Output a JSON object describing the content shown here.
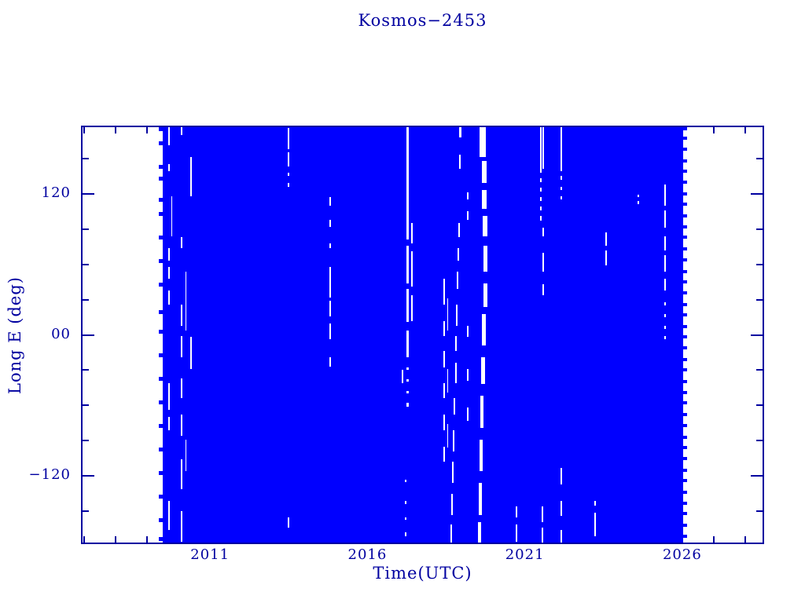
{
  "chart_data": {
    "type": "scatter",
    "title": "Kosmos−2453",
    "xlabel": "Time(UTC)",
    "ylabel": "Long E (deg)",
    "xlim": [
      2006.9,
      2028.6
    ],
    "ylim": [
      -178,
      178
    ],
    "x_major_ticks": [
      {
        "value": 2011,
        "label": "2011"
      },
      {
        "value": 2016,
        "label": "2016"
      },
      {
        "value": 2021,
        "label": "2021"
      },
      {
        "value": 2026,
        "label": "2026"
      }
    ],
    "x_minor_tick_years": [
      2007,
      2008,
      2009,
      2010,
      2012,
      2013,
      2014,
      2015,
      2017,
      2018,
      2019,
      2020,
      2022,
      2023,
      2024,
      2025,
      2027,
      2028
    ],
    "y_major_ticks": [
      {
        "value": 120,
        "label": "120"
      },
      {
        "value": 0,
        "label": "00"
      },
      {
        "value": -120,
        "label": "−120"
      }
    ],
    "y_minor_tick_degs": [
      -150,
      -90,
      -60,
      -30,
      30,
      60,
      90,
      150
    ],
    "colors": {
      "points": "#0000ff",
      "axis": "#0000a0",
      "background": "#ffffff"
    },
    "coverage": {
      "t_start": 2009.5,
      "t_end": 2026.02,
      "lon_min": -178,
      "lon_max": 178,
      "note": "dense continuous longitude coverage (solid fill of points) between t_start and t_end"
    },
    "gap_streaks": [
      {
        "t": 2009.7,
        "w": 2,
        "segments": [
          [
            178,
            161
          ],
          [
            145,
            139
          ],
          [
            74,
            63
          ],
          [
            58,
            48
          ],
          [
            38,
            26
          ],
          [
            -41,
            -64
          ],
          [
            -70,
            -81
          ],
          [
            -141,
            -166
          ]
        ]
      },
      {
        "t": 2009.78,
        "w": 1.5,
        "segments": [
          [
            118,
            84
          ]
        ]
      },
      {
        "t": 2010.1,
        "w": 2,
        "segments": [
          [
            178,
            170
          ],
          [
            83,
            74
          ],
          [
            26,
            8
          ],
          [
            -1,
            -19
          ],
          [
            -37,
            -54
          ],
          [
            -68,
            -86
          ],
          [
            -106,
            -131
          ],
          [
            -150,
            -176
          ]
        ]
      },
      {
        "t": 2010.23,
        "w": 1.5,
        "segments": [
          [
            54,
            4
          ],
          [
            -89,
            -116
          ]
        ]
      },
      {
        "t": 2010.4,
        "w": 1.5,
        "segments": [
          [
            151,
            118
          ],
          [
            -2,
            -29
          ]
        ]
      },
      {
        "t": 2013.5,
        "w": 2,
        "segments": [
          [
            176,
            158
          ],
          [
            155,
            143
          ],
          [
            138,
            135
          ],
          [
            129,
            126
          ],
          [
            -155,
            -164
          ]
        ]
      },
      {
        "t": 2014.82,
        "w": 2,
        "segments": [
          [
            117,
            110
          ],
          [
            98,
            92
          ],
          [
            78,
            74
          ],
          [
            58,
            32
          ],
          [
            29,
            16
          ],
          [
            10,
            -4
          ],
          [
            -19,
            -27
          ]
        ]
      },
      {
        "t": 2017.12,
        "w": 2,
        "segments": [
          [
            -30,
            -41
          ]
        ]
      },
      {
        "t": 2017.22,
        "w": 2,
        "segments": [
          [
            -123,
            -125
          ],
          [
            -141,
            -144
          ],
          [
            -155,
            -157
          ],
          [
            -168,
            -171
          ]
        ]
      },
      {
        "t": 2017.27,
        "w": 2.5,
        "segments": [
          [
            178,
            81
          ],
          [
            76,
            44
          ],
          [
            39,
            11
          ],
          [
            4,
            -19
          ],
          [
            -28,
            -30
          ],
          [
            -38,
            -40
          ],
          [
            -48,
            -50
          ],
          [
            -58,
            -61
          ]
        ]
      },
      {
        "t": 2017.42,
        "w": 2,
        "segments": [
          [
            95,
            78
          ],
          [
            71,
            41
          ],
          [
            34,
            12
          ]
        ]
      },
      {
        "t": 2018.44,
        "w": 1.5,
        "segments": [
          [
            48,
            26
          ],
          [
            12,
            -1
          ],
          [
            -14,
            -28
          ],
          [
            -41,
            -54
          ],
          [
            -68,
            -81
          ],
          [
            -95,
            -108
          ]
        ]
      },
      {
        "t": 2018.56,
        "w": 1,
        "segments": [
          [
            31,
            4
          ],
          [
            -29,
            -49
          ],
          [
            -76,
            -96
          ]
        ]
      },
      {
        "t": 2018.95,
        "w": 2.5,
        "segments": [
          [
            178,
            168
          ]
        ]
      },
      {
        "t": 2018.93,
        "w": 2.5,
        "segments": [
          [
            153,
            141
          ]
        ]
      },
      {
        "t": 2018.9,
        "w": 2,
        "segments": [
          [
            95,
            83
          ]
        ]
      },
      {
        "t": 2018.88,
        "w": 2,
        "segments": [
          [
            74,
            63
          ]
        ]
      },
      {
        "t": 2018.86,
        "w": 2,
        "segments": [
          [
            54,
            39
          ]
        ]
      },
      {
        "t": 2018.84,
        "w": 2,
        "segments": [
          [
            26,
            8
          ]
        ]
      },
      {
        "t": 2018.82,
        "w": 2,
        "segments": [
          [
            -1,
            -14
          ]
        ]
      },
      {
        "t": 2018.8,
        "w": 2,
        "segments": [
          [
            -24,
            -41
          ]
        ]
      },
      {
        "t": 2018.77,
        "w": 2,
        "segments": [
          [
            -54,
            -68
          ]
        ]
      },
      {
        "t": 2018.74,
        "w": 2,
        "segments": [
          [
            -81,
            -99
          ]
        ]
      },
      {
        "t": 2018.71,
        "w": 2,
        "segments": [
          [
            -108,
            -126
          ]
        ]
      },
      {
        "t": 2018.68,
        "w": 2,
        "segments": [
          [
            -135,
            -153
          ]
        ]
      },
      {
        "t": 2018.65,
        "w": 2,
        "segments": [
          [
            -161,
            -177
          ]
        ]
      },
      {
        "t": 2019.19,
        "w": 2,
        "segments": [
          [
            121,
            115
          ],
          [
            105,
            98
          ],
          [
            8,
            -2
          ],
          [
            -29,
            -39
          ],
          [
            -62,
            -73
          ]
        ]
      },
      {
        "t": 2019.67,
        "w": 8,
        "segments": [
          [
            178,
            151
          ]
        ]
      },
      {
        "t": 2019.7,
        "w": 6,
        "segments": [
          [
            148,
            129
          ]
        ]
      },
      {
        "t": 2019.72,
        "w": 6,
        "segments": [
          [
            123,
            107
          ]
        ]
      },
      {
        "t": 2019.74,
        "w": 6,
        "segments": [
          [
            101,
            84
          ]
        ]
      },
      {
        "t": 2019.76,
        "w": 5,
        "segments": [
          [
            76,
            54
          ]
        ]
      },
      {
        "t": 2019.74,
        "w": 5,
        "segments": [
          [
            44,
            24
          ]
        ]
      },
      {
        "t": 2019.71,
        "w": 5,
        "segments": [
          [
            18,
            -9
          ]
        ]
      },
      {
        "t": 2019.68,
        "w": 5,
        "segments": [
          [
            -19,
            -42
          ]
        ]
      },
      {
        "t": 2019.63,
        "w": 4,
        "segments": [
          [
            -52,
            -79
          ]
        ]
      },
      {
        "t": 2019.6,
        "w": 4,
        "segments": [
          [
            -89,
            -116
          ]
        ]
      },
      {
        "t": 2019.58,
        "w": 4,
        "segments": [
          [
            -126,
            -153
          ]
        ]
      },
      {
        "t": 2019.55,
        "w": 4,
        "segments": [
          [
            -159,
            -177
          ]
        ]
      },
      {
        "t": 2020.74,
        "w": 2,
        "segments": [
          [
            -146,
            -155
          ],
          [
            -161,
            -176
          ]
        ]
      },
      {
        "t": 2021.51,
        "w": 2,
        "segments": [
          [
            178,
            138
          ],
          [
            133,
            130
          ],
          [
            125,
            122
          ],
          [
            117,
            114
          ],
          [
            109,
            106
          ],
          [
            101,
            97
          ]
        ]
      },
      {
        "t": 2021.58,
        "w": 2,
        "segments": [
          [
            178,
            141
          ],
          [
            91,
            84
          ],
          [
            70,
            54
          ],
          [
            43,
            34
          ]
        ]
      },
      {
        "t": 2021.56,
        "w": 2,
        "segments": [
          [
            -146,
            -159
          ],
          [
            -164,
            -177
          ]
        ]
      },
      {
        "t": 2022.16,
        "w": 2,
        "segments": [
          [
            178,
            139
          ],
          [
            135,
            132
          ],
          [
            126,
            123
          ],
          [
            118,
            115
          ],
          [
            -113,
            -127
          ],
          [
            -141,
            -154
          ],
          [
            -166,
            -177
          ]
        ]
      },
      {
        "t": 2023.23,
        "w": 2,
        "segments": [
          [
            -141,
            -145
          ],
          [
            -151,
            -171
          ]
        ]
      },
      {
        "t": 2023.58,
        "w": 2,
        "segments": [
          [
            87,
            76
          ],
          [
            72,
            59
          ]
        ]
      },
      {
        "t": 2024.6,
        "w": 2,
        "segments": [
          [
            119,
            117
          ],
          [
            114,
            111
          ]
        ]
      },
      {
        "t": 2025.45,
        "w": 2,
        "segments": [
          [
            128,
            110
          ],
          [
            106,
            91
          ],
          [
            84,
            72
          ],
          [
            68,
            54
          ],
          [
            48,
            38
          ],
          [
            28,
            25
          ],
          [
            18,
            15
          ],
          [
            8,
            5
          ],
          [
            -1,
            -4
          ]
        ]
      }
    ],
    "left_edge_dash_lons": [
      175,
      163,
      143,
      133,
      115,
      103,
      83,
      63,
      43,
      20,
      3,
      -17,
      -37,
      -57,
      -77,
      -97,
      -117,
      -137,
      -157,
      -173
    ],
    "right_edge_dash_lons": [
      176,
      167,
      158,
      148,
      139,
      130,
      120,
      111,
      101,
      92,
      83,
      73,
      64,
      54,
      45,
      36,
      26,
      17,
      7,
      -2,
      -11,
      -21,
      -30,
      -40,
      -49,
      -58,
      -68,
      -77,
      -87,
      -96,
      -105,
      -115,
      -124,
      -134,
      -143,
      -152,
      -162,
      -171
    ]
  }
}
